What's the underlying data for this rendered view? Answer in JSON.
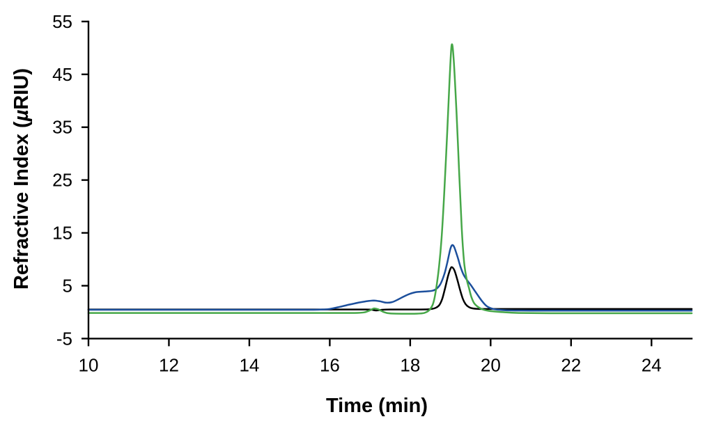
{
  "figure": {
    "background": "#ffffff",
    "axis_color": "#000000",
    "xlabel": "Time (min)",
    "ylabel_prefix": "Refractive Index (",
    "ylabel_mu": "µ",
    "ylabel_suffix": "RIU)"
  },
  "chart_data": {
    "type": "line",
    "title": "",
    "xlabel": "Time (min)",
    "ylabel": "Refractive Index (µRIU)",
    "xlim": [
      10,
      25
    ],
    "ylim": [
      -5,
      55
    ],
    "xticks": [
      10,
      12,
      14,
      16,
      18,
      20,
      22,
      24
    ],
    "yticks": [
      -5,
      5,
      15,
      25,
      35,
      45,
      55
    ],
    "grid": false,
    "legend": "none",
    "series": [
      {
        "name": "black-trace",
        "color": "#000000",
        "peak_time_min": 19.04,
        "peak_value_uRIU": 8.5,
        "points": [
          [
            10,
            0.5
          ],
          [
            11,
            0.5
          ],
          [
            12,
            0.5
          ],
          [
            13,
            0.5
          ],
          [
            14,
            0.5
          ],
          [
            15,
            0.5
          ],
          [
            16,
            0.5
          ],
          [
            16.9,
            0.5
          ],
          [
            17.05,
            0.45
          ],
          [
            17.15,
            0.32
          ],
          [
            17.3,
            0.45
          ],
          [
            17.5,
            0.5
          ],
          [
            18,
            0.5
          ],
          [
            18.4,
            0.52
          ],
          [
            18.55,
            0.62
          ],
          [
            18.65,
            0.88
          ],
          [
            18.73,
            1.4
          ],
          [
            18.8,
            2.6
          ],
          [
            18.87,
            4.6
          ],
          [
            18.94,
            6.8
          ],
          [
            19,
            8.2
          ],
          [
            19.04,
            8.5
          ],
          [
            19.1,
            7.9
          ],
          [
            19.17,
            6.2
          ],
          [
            19.24,
            4.2
          ],
          [
            19.31,
            2.5
          ],
          [
            19.38,
            1.5
          ],
          [
            19.46,
            0.95
          ],
          [
            19.55,
            0.72
          ],
          [
            19.68,
            0.62
          ],
          [
            19.85,
            0.6
          ],
          [
            20.2,
            0.6
          ],
          [
            21,
            0.6
          ],
          [
            22,
            0.6
          ],
          [
            23,
            0.6
          ],
          [
            24,
            0.6
          ],
          [
            25,
            0.6
          ]
        ]
      },
      {
        "name": "blue-trace",
        "color": "#1c4f9c",
        "peak_time_min": 19.05,
        "peak_value_uRIU": 12.7,
        "points": [
          [
            10,
            0.45
          ],
          [
            11,
            0.45
          ],
          [
            12,
            0.45
          ],
          [
            13,
            0.45
          ],
          [
            14,
            0.45
          ],
          [
            15,
            0.45
          ],
          [
            15.6,
            0.45
          ],
          [
            15.85,
            0.5
          ],
          [
            16,
            0.6
          ],
          [
            16.25,
            1.0
          ],
          [
            16.5,
            1.45
          ],
          [
            16.75,
            1.85
          ],
          [
            16.95,
            2.1
          ],
          [
            17.1,
            2.2
          ],
          [
            17.25,
            2.05
          ],
          [
            17.4,
            1.8
          ],
          [
            17.55,
            1.9
          ],
          [
            17.7,
            2.4
          ],
          [
            17.85,
            3.0
          ],
          [
            18,
            3.5
          ],
          [
            18.15,
            3.8
          ],
          [
            18.35,
            3.9
          ],
          [
            18.55,
            4.05
          ],
          [
            18.65,
            4.4
          ],
          [
            18.75,
            5.3
          ],
          [
            18.85,
            7.2
          ],
          [
            18.92,
            9.3
          ],
          [
            19,
            12.0
          ],
          [
            19.05,
            12.7
          ],
          [
            19.1,
            12.2
          ],
          [
            19.18,
            10.4
          ],
          [
            19.25,
            8.6
          ],
          [
            19.32,
            7.2
          ],
          [
            19.4,
            6.2
          ],
          [
            19.5,
            5.2
          ],
          [
            19.6,
            4.1
          ],
          [
            19.7,
            3.0
          ],
          [
            19.8,
            1.95
          ],
          [
            19.9,
            1.15
          ],
          [
            20,
            0.75
          ],
          [
            20.1,
            0.55
          ],
          [
            20.25,
            0.42
          ],
          [
            20.5,
            0.32
          ],
          [
            21,
            0.3
          ],
          [
            22,
            0.3
          ],
          [
            23,
            0.3
          ],
          [
            24,
            0.3
          ],
          [
            25,
            0.3
          ]
        ]
      },
      {
        "name": "green-trace",
        "color": "#46a748",
        "peak_time_min": 19.03,
        "peak_value_uRIU": 50.5,
        "points": [
          [
            10,
            -0.15
          ],
          [
            11,
            -0.15
          ],
          [
            12,
            -0.15
          ],
          [
            13,
            -0.15
          ],
          [
            14,
            -0.15
          ],
          [
            15,
            -0.15
          ],
          [
            16,
            -0.15
          ],
          [
            16.6,
            -0.15
          ],
          [
            16.85,
            -0.05
          ],
          [
            17,
            0.35
          ],
          [
            17.1,
            0.7
          ],
          [
            17.2,
            0.55
          ],
          [
            17.35,
            0.0
          ],
          [
            17.5,
            -0.25
          ],
          [
            17.8,
            -0.3
          ],
          [
            18.1,
            -0.3
          ],
          [
            18.35,
            -0.15
          ],
          [
            18.5,
            0.6
          ],
          [
            18.6,
            2.5
          ],
          [
            18.7,
            7.5
          ],
          [
            18.78,
            14
          ],
          [
            18.85,
            23
          ],
          [
            18.92,
            34
          ],
          [
            18.98,
            44
          ],
          [
            19.03,
            50.5
          ],
          [
            19.08,
            48
          ],
          [
            19.15,
            38
          ],
          [
            19.22,
            26
          ],
          [
            19.28,
            16
          ],
          [
            19.34,
            9.5
          ],
          [
            19.4,
            6.4
          ],
          [
            19.46,
            4.6
          ],
          [
            19.52,
            2.9
          ],
          [
            19.6,
            1.6
          ],
          [
            19.75,
            0.7
          ],
          [
            19.95,
            0.25
          ],
          [
            20.3,
            0.0
          ],
          [
            20.7,
            -0.15
          ],
          [
            21.5,
            -0.2
          ],
          [
            23,
            -0.2
          ],
          [
            25,
            -0.2
          ]
        ]
      }
    ]
  }
}
